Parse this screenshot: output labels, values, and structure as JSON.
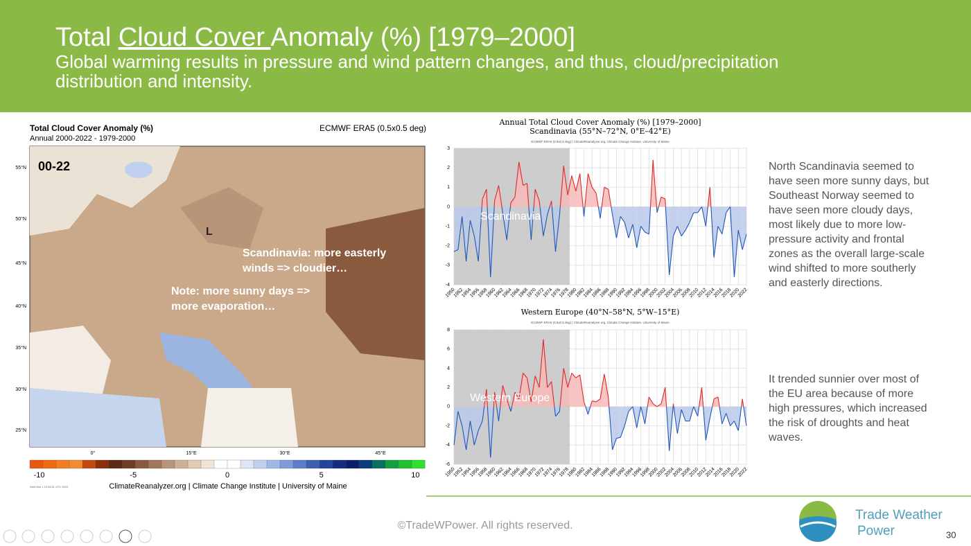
{
  "header": {
    "title_start": "Total ",
    "title_link": "Cloud Cover ",
    "title_end": "Anomaly (%) [1979–2000]",
    "subtitle_lines": [
      "Global warming results in pressure and wind pattern changes, and thus, cloud/precipitation",
      "distribution and intensity."
    ]
  },
  "map": {
    "title": "Total Cloud Cover Anomaly (%)",
    "subtitle": "Annual 2000-2022 - 1979-2000",
    "source": "ECMWF ERA5 (0.5x0.5 deg)",
    "period_label": "00-22",
    "pressure_label": "L",
    "lat_labels": [
      "55°N",
      "50°N",
      "45°N",
      "40°N",
      "35°N",
      "30°N",
      "25°N"
    ],
    "lon_labels": [
      "0°",
      "15°E",
      "30°E",
      "45°E"
    ],
    "notes": [
      [
        "Scandinavia: more easterly",
        "winds => cloudier…"
      ],
      [
        "Note: more sunny days =>",
        "more evaporation…"
      ]
    ],
    "colorbar_ticks": [
      -10,
      -5,
      0,
      5,
      10
    ],
    "colorbar_lim": [
      -10.5,
      10.5
    ],
    "colorbar_colors": [
      "#e8590c",
      "#f06a14",
      "#f57c20",
      "#f28c30",
      "#c24a12",
      "#8a300c",
      "#5a2a14",
      "#6e3e24",
      "#8a5a3e",
      "#a2765a",
      "#b89478",
      "#cdb096",
      "#e0cbb4",
      "#f0e4d6",
      "#ffffff",
      "#ffffff",
      "#dde6f5",
      "#c0d0ee",
      "#a0b8e4",
      "#7e9cd6",
      "#5c7ec6",
      "#3d60b0",
      "#24449a",
      "#142c80",
      "#0a1e6a",
      "#0a3a7a",
      "#0a7060",
      "#10a040",
      "#20c030",
      "#30e030"
    ],
    "credit": "ClimateReanalyzer.org | Climate Change Institute | University of Maine",
    "timestamp": "Wed Mar 1 12:05:11 UTC 2023"
  },
  "charts": [
    {
      "type": "line",
      "title": "Annual Total Cloud Cover Anomaly (%) [1979–2000]",
      "subtitle": "Scandinavia (55°N–72°N, 0°E–42°E)",
      "note": "ECMWF ERA5 (0.5x0.5 deg) | ClimateReanalyzer.org, Climate Change Institute, University of Maine",
      "label": "Scandinavia",
      "x": [
        1950,
        1951,
        1952,
        1953,
        1954,
        1955,
        1956,
        1957,
        1958,
        1959,
        1960,
        1961,
        1962,
        1963,
        1964,
        1965,
        1966,
        1967,
        1968,
        1969,
        1970,
        1971,
        1972,
        1973,
        1974,
        1975,
        1976,
        1977,
        1978,
        1979,
        1980,
        1981,
        1982,
        1983,
        1984,
        1985,
        1986,
        1987,
        1988,
        1989,
        1990,
        1991,
        1992,
        1993,
        1994,
        1995,
        1996,
        1997,
        1998,
        1999,
        2000,
        2001,
        2002,
        2003,
        2004,
        2005,
        2006,
        2007,
        2008,
        2009,
        2010,
        2011,
        2012,
        2013,
        2014,
        2015,
        2016,
        2017,
        2018,
        2019,
        2020,
        2021,
        2022
      ],
      "values": [
        -2.3,
        -2.2,
        -0.5,
        -2.8,
        -0.7,
        -1.5,
        -2.8,
        0.4,
        0.9,
        -3.6,
        0.3,
        1.1,
        -0.3,
        -1.7,
        0.2,
        0.5,
        2.3,
        1.1,
        1.2,
        -1.7,
        0.9,
        0.3,
        -1.5,
        -0.4,
        0.3,
        -2.3,
        -0.4,
        2.1,
        0.6,
        1.6,
        0.8,
        1.7,
        -0.5,
        1.7,
        1.0,
        0.7,
        -0.6,
        1.0,
        0.9,
        -0.4,
        -1.6,
        -0.5,
        -0.8,
        -1.6,
        -0.9,
        -2.1,
        -1.0,
        -1.3,
        -1.4,
        2.4,
        -0.3,
        0.5,
        0.4,
        -3.5,
        -1.5,
        -1.0,
        -1.5,
        -1.2,
        -0.8,
        -0.3,
        -0.3,
        0.0,
        -1.0,
        1.0,
        -2.6,
        -1.0,
        -1.4,
        -0.3,
        0.0,
        -3.6,
        -1.2,
        -2.2,
        -1.4
      ],
      "xlim": [
        1950,
        2022
      ],
      "xticks": [
        1950,
        1952,
        1954,
        1956,
        1958,
        1960,
        1962,
        1964,
        1966,
        1968,
        1970,
        1972,
        1974,
        1976,
        1978,
        1980,
        1982,
        1984,
        1986,
        1988,
        1990,
        1992,
        1994,
        1996,
        1998,
        2000,
        2002,
        2004,
        2006,
        2008,
        2010,
        2012,
        2014,
        2016,
        2018,
        2020,
        2022
      ],
      "ylim": [
        -4,
        3
      ],
      "yticks": [
        -4,
        -3,
        -2,
        -1,
        0,
        1,
        2,
        3
      ],
      "shaded_x": [
        1950,
        1978.5
      ],
      "grid": true,
      "colors": {
        "above": "#e02828",
        "below": "#1f56b8",
        "above_fill": "#f6b8b8",
        "below_fill": "#b9c9ea",
        "shade": "#c8c8c8"
      }
    },
    {
      "type": "line",
      "title": "Western Europe (40°N–58°N, 5°W–15°E)",
      "note": "ECMWF ERA5 (0.5x0.5 deg) | ClimateReanalyzer.org, Climate Change Institute, University of Maine",
      "label": "Western Europe",
      "x": [
        1950,
        1951,
        1952,
        1953,
        1954,
        1955,
        1956,
        1957,
        1958,
        1959,
        1960,
        1961,
        1962,
        1963,
        1964,
        1965,
        1966,
        1967,
        1968,
        1969,
        1970,
        1971,
        1972,
        1973,
        1974,
        1975,
        1976,
        1977,
        1978,
        1979,
        1980,
        1981,
        1982,
        1983,
        1984,
        1985,
        1986,
        1987,
        1988,
        1989,
        1990,
        1991,
        1992,
        1993,
        1994,
        1995,
        1996,
        1997,
        1998,
        1999,
        2000,
        2001,
        2002,
        2003,
        2004,
        2005,
        2006,
        2007,
        2008,
        2009,
        2010,
        2011,
        2012,
        2013,
        2014,
        2015,
        2016,
        2017,
        2018,
        2019,
        2020,
        2021,
        2022
      ],
      "values": [
        -4,
        -0.5,
        -2,
        -4.5,
        -1.5,
        -4,
        -2.5,
        -1.5,
        1.8,
        -5.3,
        1.5,
        -1.5,
        2.2,
        0.8,
        -0.5,
        1.5,
        0.8,
        3.5,
        3.0,
        0.5,
        3.2,
        2.0,
        7.0,
        2.0,
        2.6,
        -1.0,
        -0.5,
        4.0,
        2.0,
        3.5,
        3.0,
        3.3,
        0.5,
        -0.8,
        0.6,
        0.5,
        0.8,
        3.4,
        1.0,
        -4.5,
        -3.3,
        -3.2,
        -2,
        -0.5,
        0,
        -2.2,
        0,
        -1.8,
        1.0,
        0.3,
        0,
        0.3,
        2.0,
        -4.6,
        0.3,
        -2.8,
        -0.3,
        -1.5,
        -1.5,
        0,
        -1.0,
        2.0,
        -3.5,
        -1.2,
        0.8,
        1.0,
        -1.8,
        -0.7,
        -2,
        -1.5,
        -2.5,
        0.8,
        -2.0
      ],
      "xlim": [
        1950,
        2022
      ],
      "xticks": [
        1950,
        1952,
        1954,
        1956,
        1958,
        1960,
        1962,
        1964,
        1966,
        1968,
        1970,
        1972,
        1974,
        1976,
        1978,
        1980,
        1982,
        1984,
        1986,
        1988,
        1990,
        1992,
        1994,
        1996,
        1998,
        2000,
        2002,
        2004,
        2006,
        2008,
        2010,
        2012,
        2014,
        2016,
        2018,
        2020,
        2022
      ],
      "ylim": [
        -6,
        8
      ],
      "yticks": [
        -6,
        -4,
        -2,
        0,
        2,
        4,
        6,
        8
      ],
      "shaded_x": [
        1950,
        1978.5
      ],
      "grid": true,
      "colors": {
        "above": "#e02828",
        "below": "#1f56b8",
        "above_fill": "#f6b8b8",
        "below_fill": "#b9c9ea",
        "shade": "#c8c8c8"
      }
    }
  ],
  "text_blocks": [
    [
      "North Scandinavia seemed to",
      "have seen more sunny days, but",
      "Southeast Norway seemed to",
      "have seen more cloudy days,",
      "most likely due to more low-",
      "pressure activity and frontal",
      "zones as the overall large-scale",
      "wind shifted to more southerly",
      "and easterly directions."
    ],
    [
      "It trended sunnier over most of",
      "the EU area because of more",
      "high pressures, which increased",
      "the risk of droughts and heat",
      "waves."
    ]
  ],
  "footer": {
    "copyright": "©TradeWPower. All rights reserved.",
    "brand_line1": "Trade Weather",
    "brand_line2": "Power",
    "page": "30"
  }
}
